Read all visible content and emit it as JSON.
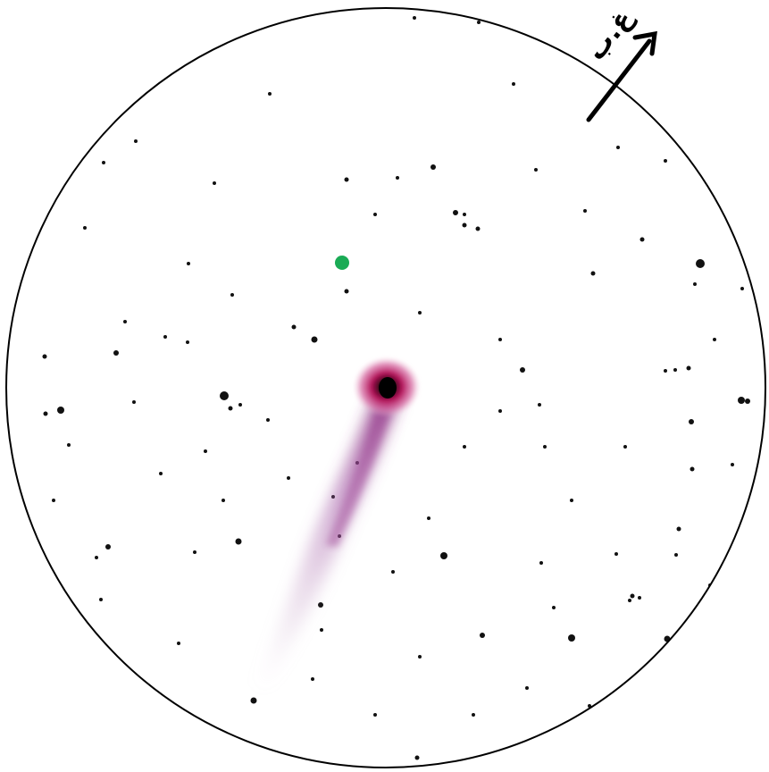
{
  "figure": {
    "background_color": "#ffffff",
    "field_outline_color": "#000000",
    "star_color": "#111111",
    "comet_coma_color": "#b3155a",
    "comet_tail_color": "#9b4f9e",
    "marker_color": "#1aab55"
  },
  "direction_indicator": {
    "label": "غ.ب",
    "icon": "north-east-arrow-icon"
  }
}
